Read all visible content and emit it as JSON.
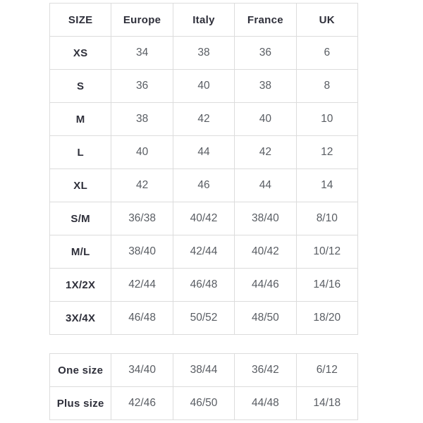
{
  "colors": {
    "background": "#ffffff",
    "border": "#dcdcdc",
    "header_text": "#2e2f3a",
    "cell_text": "#595d63"
  },
  "chart_data": {
    "type": "table",
    "columns": [
      "SIZE",
      "Europe",
      "Italy",
      "France",
      "UK"
    ],
    "rows": [
      [
        "XS",
        "34",
        "38",
        "36",
        "6"
      ],
      [
        "S",
        "36",
        "40",
        "38",
        "8"
      ],
      [
        "M",
        "38",
        "42",
        "40",
        "10"
      ],
      [
        "L",
        "40",
        "44",
        "42",
        "12"
      ],
      [
        "XL",
        "42",
        "46",
        "44",
        "14"
      ],
      [
        "S/M",
        "36/38",
        "40/42",
        "38/40",
        "8/10"
      ],
      [
        "M/L",
        "38/40",
        "42/44",
        "40/42",
        "10/12"
      ],
      [
        "1X/2X",
        "42/44",
        "46/48",
        "44/46",
        "14/16"
      ],
      [
        "3X/4X",
        "46/48",
        "50/52",
        "48/50",
        "18/20"
      ]
    ],
    "secondary_rows": [
      [
        "One size",
        "34/40",
        "38/44",
        "36/42",
        "6/12"
      ],
      [
        "Plus size",
        "42/46",
        "46/50",
        "44/48",
        "14/18"
      ]
    ],
    "layout": {
      "grid": "full-borders",
      "two_tables": true,
      "header_row_on_first_table_only": true
    }
  }
}
